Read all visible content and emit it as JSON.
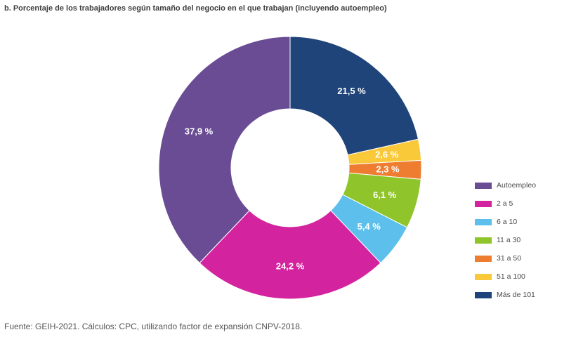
{
  "chart_data": {
    "type": "pie",
    "title": "b. Porcentaje de los trabajadores según tamaño del negocio en el que trabajan (incluyendo autoempleo)",
    "donut": true,
    "categories": [
      "Más de 101",
      "51 a 100",
      "31 a 50",
      "11 a 30",
      "6 a 10",
      "2 a 5",
      "Autoempleo"
    ],
    "values": [
      21.5,
      2.6,
      2.3,
      6.1,
      5.4,
      24.2,
      37.9
    ],
    "value_labels": [
      "21,5 %",
      "2,6 %",
      "2,3 %",
      "6,1 %",
      "5,4 %",
      "24,2 %",
      "37,9 %"
    ],
    "colors": [
      "#1f4479",
      "#fac93a",
      "#ee7d31",
      "#8fc52a",
      "#5dc0ec",
      "#d4239f",
      "#6a4c94"
    ],
    "legend": {
      "position": "right",
      "order": [
        "Autoempleo",
        "2 a 5",
        "6 a 10",
        "11 a 30",
        "31 a 50",
        "51 a 100",
        "Más de 101"
      ]
    },
    "source": "Fuente: GEIH-2021. Cálculos: CPC, utilizando factor de expansión CNPV-2018."
  }
}
